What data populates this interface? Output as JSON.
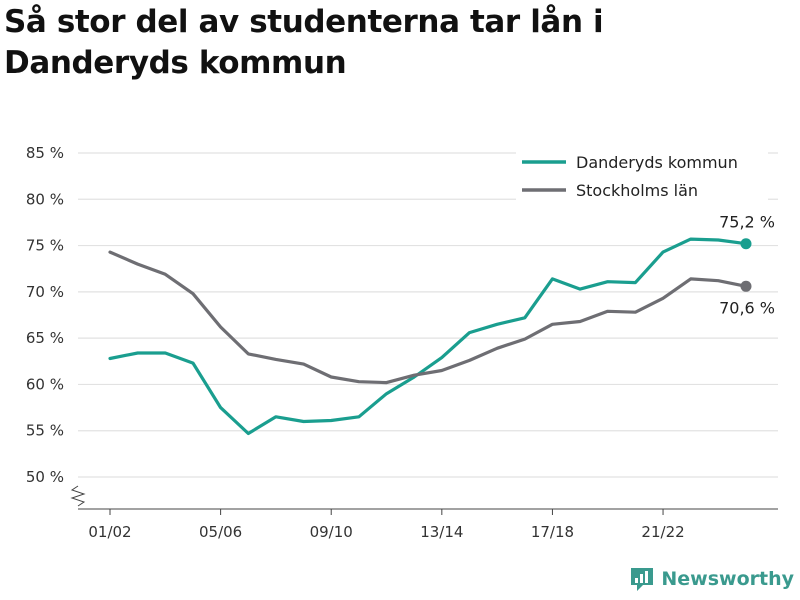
{
  "title": "Så stor del av studenterna tar lån i Danderyds kommun",
  "brand": {
    "name": "Newsworthy",
    "icon": "newsworthy-logo-icon",
    "color": "#3a9a8e"
  },
  "chart_data": {
    "type": "line",
    "x": [
      "01/02",
      "02/03",
      "03/04",
      "04/05",
      "05/06",
      "06/07",
      "07/08",
      "08/09",
      "09/10",
      "10/11",
      "11/12",
      "12/13",
      "13/14",
      "14/15",
      "15/16",
      "16/17",
      "17/18",
      "18/19",
      "19/20",
      "20/21",
      "21/22",
      "22/23",
      "23/24",
      "24/25"
    ],
    "x_tick_labels": [
      "01/02",
      "05/06",
      "09/10",
      "13/14",
      "17/18",
      "21/22"
    ],
    "y_ticks": [
      "50 %",
      "55 %",
      "60 %",
      "65 %",
      "70 %",
      "75 %",
      "80 %",
      "85 %"
    ],
    "ylim": [
      50,
      85
    ],
    "y_axis_break": true,
    "grid": true,
    "legend_position": "top-right",
    "series": [
      {
        "name": "Danderyds kommun",
        "color": "#1a9e8f",
        "values": [
          62.8,
          63.4,
          63.4,
          62.3,
          57.5,
          54.7,
          56.5,
          56.0,
          56.1,
          56.5,
          59.0,
          60.8,
          62.9,
          65.6,
          66.5,
          67.2,
          71.4,
          70.3,
          71.1,
          71.0,
          74.3,
          75.7,
          75.6,
          75.2
        ],
        "end_label": "75,2 %"
      },
      {
        "name": "Stockholms län",
        "color": "#6e6e73",
        "values": [
          74.3,
          73.0,
          71.9,
          69.8,
          66.2,
          63.3,
          62.7,
          62.2,
          60.8,
          60.3,
          60.2,
          61.0,
          61.5,
          62.6,
          63.9,
          64.9,
          66.5,
          66.8,
          67.9,
          67.8,
          69.3,
          71.4,
          71.2,
          70.6
        ],
        "end_label": "70,6 %"
      }
    ]
  }
}
